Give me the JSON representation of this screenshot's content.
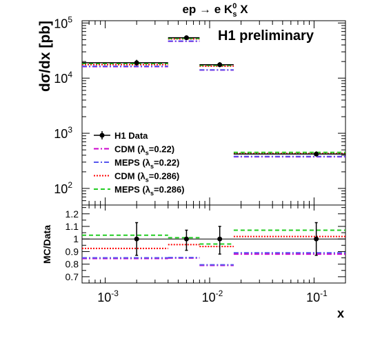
{
  "chart_data": [
    {
      "type": "scatter",
      "title": "ep → e K⁰ₛ X",
      "title_parts": {
        "main": "ep → e K",
        "sup": "0",
        "sub": "s",
        "tail": " X"
      },
      "annotation": "H1 preliminary",
      "ylabel": "dσ/dx [pb]",
      "xlabel": "x",
      "xscale": "log",
      "yscale": "log",
      "xlim": [
        0.0006,
        0.2
      ],
      "ylim": [
        50,
        110000
      ],
      "x_ticks": [
        {
          "value": 0.001,
          "base": "10",
          "exp": "-3"
        },
        {
          "value": 0.01,
          "base": "10",
          "exp": "-2"
        },
        {
          "value": 0.1,
          "base": "10",
          "exp": "-1"
        }
      ],
      "y_ticks": [
        {
          "value": 100,
          "base": "10",
          "exp": "2"
        },
        {
          "value": 1000,
          "base": "10",
          "exp": "3"
        },
        {
          "value": 10000,
          "base": "10",
          "exp": "4"
        },
        {
          "value": 100000,
          "base": "10",
          "exp": "5"
        }
      ],
      "bins": [
        {
          "lo": 0.0006,
          "hi": 0.004,
          "x": 0.002
        },
        {
          "lo": 0.004,
          "hi": 0.008,
          "x": 0.006
        },
        {
          "lo": 0.008,
          "hi": 0.017,
          "x": 0.0125
        },
        {
          "lo": 0.017,
          "hi": 0.2,
          "x": 0.105
        }
      ],
      "data": {
        "name": "H1 Data",
        "values": [
          19000,
          54000,
          17500,
          420
        ],
        "err_up": [
          21500,
          59000,
          19500,
          470
        ],
        "err_dn": [
          16800,
          49000,
          15800,
          380
        ]
      },
      "series": [
        {
          "name": "CDM (λs=0.22)",
          "color": "#cc00cc",
          "dash": "7,3,2,3",
          "values": [
            16200,
            46500,
            14000,
            375
          ]
        },
        {
          "name": "MEPS (λs=0.22)",
          "color": "#5555ee",
          "dash": "7,3,2,3",
          "values": [
            16400,
            47000,
            14100,
            380
          ]
        },
        {
          "name": "CDM (λs=0.286)",
          "color": "#ff0000",
          "dash": "2,2",
          "values": [
            17600,
            51500,
            16500,
            430
          ]
        },
        {
          "name": "MEPS (λs=0.286)",
          "color": "#22cc22",
          "dash": "6,4",
          "values": [
            18400,
            52500,
            17100,
            450
          ]
        }
      ],
      "legend": {
        "placement": "bottom-left",
        "data_label": "H1 Data",
        "entries": [
          {
            "prefix": "CDM (",
            "sub": "s",
            "suffix": "=0.22)"
          },
          {
            "prefix": "MEPS (",
            "sub": "s",
            "suffix": "=0.22)"
          },
          {
            "prefix": "CDM (",
            "sub": "s",
            "suffix": "=0.286)"
          },
          {
            "prefix": "MEPS (",
            "sub": "s",
            "suffix": "=0.286)"
          }
        ]
      }
    },
    {
      "type": "scatter",
      "ylabel": "MC/Data",
      "xlabel": "x",
      "xscale": "log",
      "ylim": [
        0.65,
        1.27
      ],
      "y_ticks": [
        "0.7",
        "0.8",
        "0.9",
        "1",
        "1.1",
        "1.2"
      ],
      "reference_line": 1.0,
      "data": {
        "values": [
          1.0,
          1.0,
          1.0,
          1.0
        ],
        "err_up": [
          1.13,
          1.07,
          1.1,
          1.13
        ],
        "err_dn": [
          0.87,
          0.91,
          0.88,
          0.87
        ]
      },
      "series": [
        {
          "name": "CDM (λs=0.22)",
          "values": [
            0.845,
            0.848,
            0.79,
            0.88
          ]
        },
        {
          "name": "MEPS (λs=0.22)",
          "values": [
            0.85,
            0.852,
            0.795,
            0.89
          ]
        },
        {
          "name": "CDM (λs=0.286)",
          "values": [
            0.925,
            0.955,
            0.94,
            1.02
          ]
        },
        {
          "name": "MEPS (λs=0.286)",
          "values": [
            1.03,
            1.01,
            0.96,
            1.07
          ]
        }
      ]
    }
  ]
}
